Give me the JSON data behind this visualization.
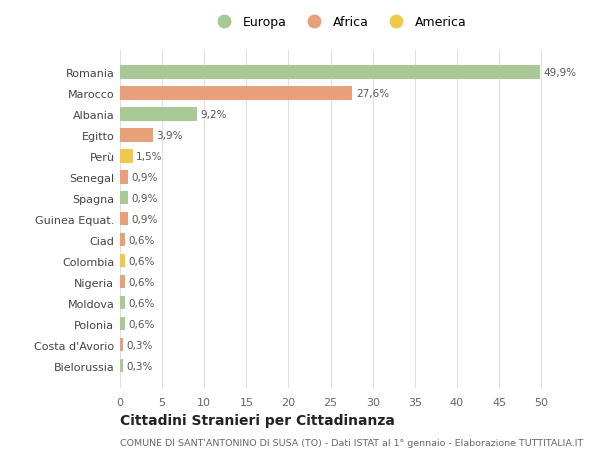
{
  "categories": [
    "Romania",
    "Marocco",
    "Albania",
    "Egitto",
    "Perù",
    "Senegal",
    "Spagna",
    "Guinea Equat.",
    "Ciad",
    "Colombia",
    "Nigeria",
    "Moldova",
    "Polonia",
    "Costa d'Avorio",
    "Bielorussia"
  ],
  "values": [
    49.9,
    27.6,
    9.2,
    3.9,
    1.5,
    0.9,
    0.9,
    0.9,
    0.6,
    0.6,
    0.6,
    0.6,
    0.6,
    0.3,
    0.3
  ],
  "labels": [
    "49,9%",
    "27,6%",
    "9,2%",
    "3,9%",
    "1,5%",
    "0,9%",
    "0,9%",
    "0,9%",
    "0,6%",
    "0,6%",
    "0,6%",
    "0,6%",
    "0,6%",
    "0,3%",
    "0,3%"
  ],
  "continents": [
    "Europa",
    "Africa",
    "Europa",
    "Africa",
    "America",
    "Africa",
    "Europa",
    "Africa",
    "Africa",
    "America",
    "Africa",
    "Europa",
    "Europa",
    "Africa",
    "Europa"
  ],
  "colors": {
    "Europa": "#a8c896",
    "Africa": "#e8a07a",
    "America": "#f0c84a"
  },
  "legend": [
    "Europa",
    "Africa",
    "America"
  ],
  "legend_colors": [
    "#a8c896",
    "#e8a07a",
    "#f0c84a"
  ],
  "title": "Cittadini Stranieri per Cittadinanza",
  "subtitle": "COMUNE DI SANT'ANTONINO DI SUSA (TO) - Dati ISTAT al 1° gennaio - Elaborazione TUTTITALIA.IT",
  "xlim": [
    0,
    52
  ],
  "xticks": [
    0,
    5,
    10,
    15,
    20,
    25,
    30,
    35,
    40,
    45,
    50
  ],
  "background_color": "#ffffff",
  "grid_color": "#e0e0e0"
}
